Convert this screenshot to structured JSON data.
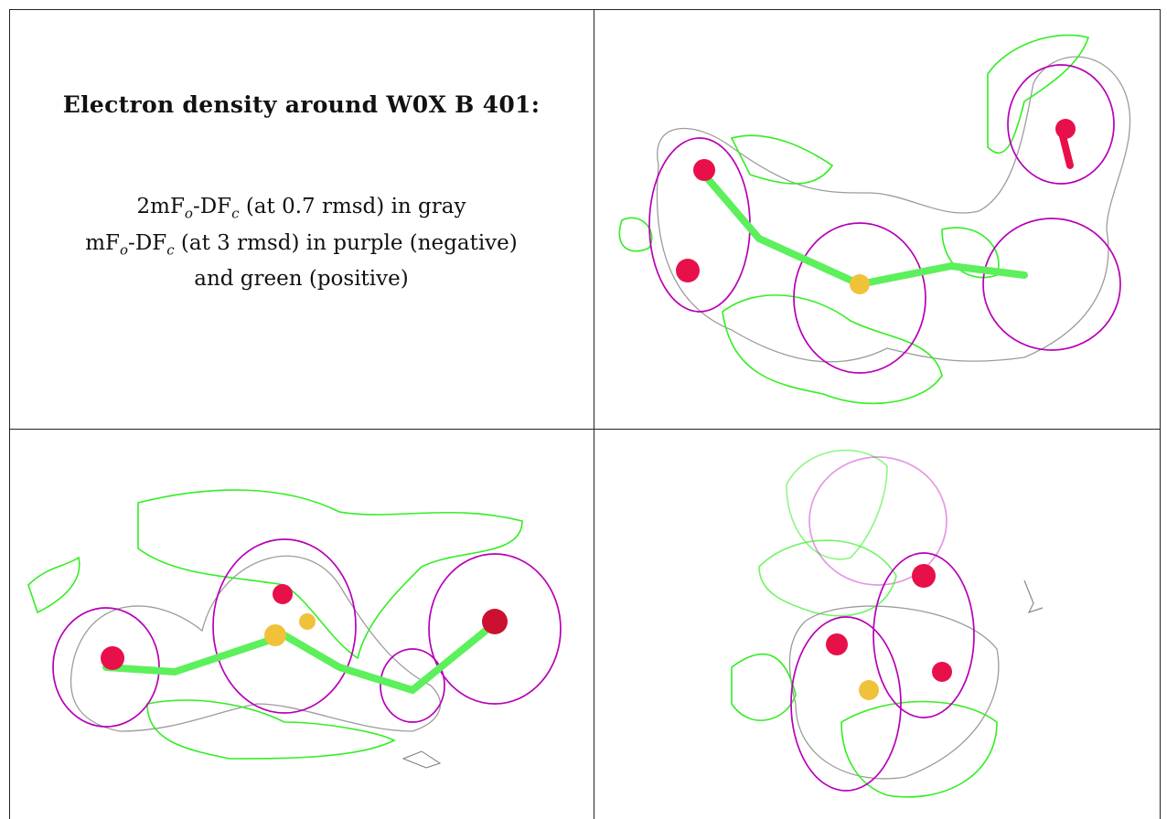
{
  "caption": {
    "title": "Electron density around W0X B 401:",
    "line1_a": "2mF",
    "line1_sub1": "o",
    "line1_b": "-DF",
    "line1_sub2": "c",
    "line1_c": " (at 0.7 rmsd) in gray",
    "line2_a": "mF",
    "line2_sub1": "o",
    "line2_b": "-DF",
    "line2_sub2": "c",
    "line2_c": " (at 3 rmsd) in purple (negative)",
    "line3": "and green (positive)"
  },
  "colors": {
    "gray_mesh": "#9c9c9c",
    "purple_mesh": "#b800b8",
    "green_mesh": "#33ee22",
    "oxygen_atom": "#e8104a",
    "sulfur_atom": "#f0c23a",
    "bond": "#5cf05c"
  },
  "panels": [
    {
      "name": "view-top-right"
    },
    {
      "name": "view-bottom-left"
    },
    {
      "name": "view-bottom-right"
    }
  ]
}
